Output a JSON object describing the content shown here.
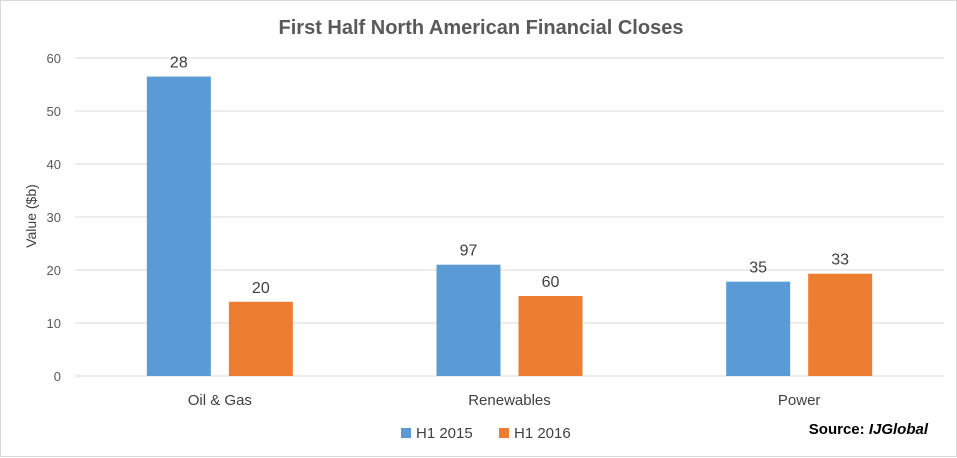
{
  "chart_data": {
    "type": "bar",
    "title": "First Half North American Financial Closes",
    "xlabel": "",
    "ylabel": "Value ($b)",
    "ylim": [
      0,
      60
    ],
    "yticks": [
      "0",
      "10",
      "20",
      "30",
      "40",
      "50",
      "60"
    ],
    "categories": [
      "Oil & Gas",
      "Renewables",
      "Power"
    ],
    "series": [
      {
        "name": "H1 2015",
        "color": "#5B9BD5",
        "values": [
          56.5,
          21,
          17.8
        ],
        "data_labels": [
          "28",
          "97",
          "35"
        ]
      },
      {
        "name": "H1 2016",
        "color": "#ED7D31",
        "values": [
          14,
          15.1,
          19.3
        ],
        "data_labels": [
          "20",
          "60",
          "33"
        ]
      }
    ],
    "grid": true,
    "legend_position": "bottom"
  },
  "source_note": {
    "prefix": "Source: ",
    "name": "IJGlobal"
  }
}
